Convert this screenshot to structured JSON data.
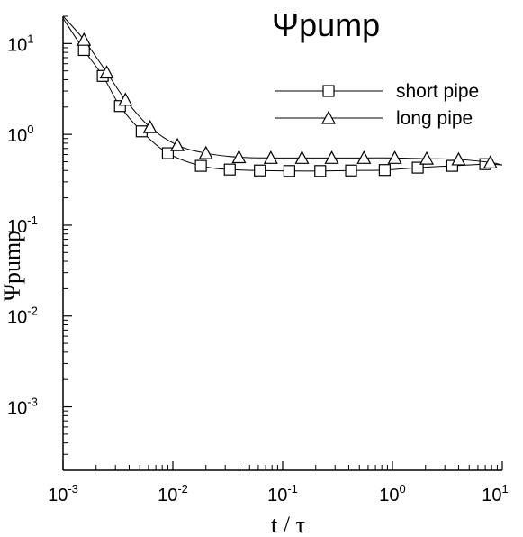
{
  "chart_data": {
    "type": "line",
    "title": "Ψpump",
    "xlabel": "t / τ",
    "ylabel": "Ψpump",
    "xscale": "log",
    "yscale": "log",
    "xlim": [
      0.001,
      10
    ],
    "ylim": [
      0.0002,
      20
    ],
    "grid": false,
    "legend_position": "top-right",
    "x_ticks": [
      {
        "base": "10",
        "exp": "-3"
      },
      {
        "base": "10",
        "exp": "-2"
      },
      {
        "base": "10",
        "exp": "-1"
      },
      {
        "base": "10",
        "exp": "0"
      },
      {
        "base": "10",
        "exp": "1"
      }
    ],
    "y_ticks": [
      {
        "base": "10",
        "exp": "-3",
        "value": 0.001
      },
      {
        "base": "10",
        "exp": "-2",
        "value": 0.01
      },
      {
        "base": "10",
        "exp": "-1",
        "value": 0.1
      },
      {
        "base": "10",
        "exp": "0",
        "value": 1
      },
      {
        "base": "10",
        "exp": "1",
        "value": 10
      }
    ],
    "series": [
      {
        "name": "short pipe",
        "marker": "square",
        "x": [
          0.00155,
          0.0023,
          0.0033,
          0.0052,
          0.009,
          0.018,
          0.033,
          0.062,
          0.115,
          0.22,
          0.42,
          0.85,
          1.7,
          3.5,
          7.0
        ],
        "y": [
          8.5,
          4.4,
          2.05,
          1.08,
          0.62,
          0.45,
          0.41,
          0.4,
          0.395,
          0.395,
          0.4,
          0.405,
          0.43,
          0.45,
          0.47
        ]
      },
      {
        "name": "long pipe",
        "marker": "triangle",
        "x": [
          0.00155,
          0.0025,
          0.0037,
          0.0062,
          0.011,
          0.02,
          0.04,
          0.078,
          0.15,
          0.28,
          0.55,
          1.05,
          2.05,
          4.0,
          7.8
        ],
        "y": [
          11.0,
          4.8,
          2.4,
          1.2,
          0.76,
          0.62,
          0.56,
          0.55,
          0.55,
          0.55,
          0.55,
          0.55,
          0.54,
          0.53,
          0.49
        ]
      }
    ]
  }
}
